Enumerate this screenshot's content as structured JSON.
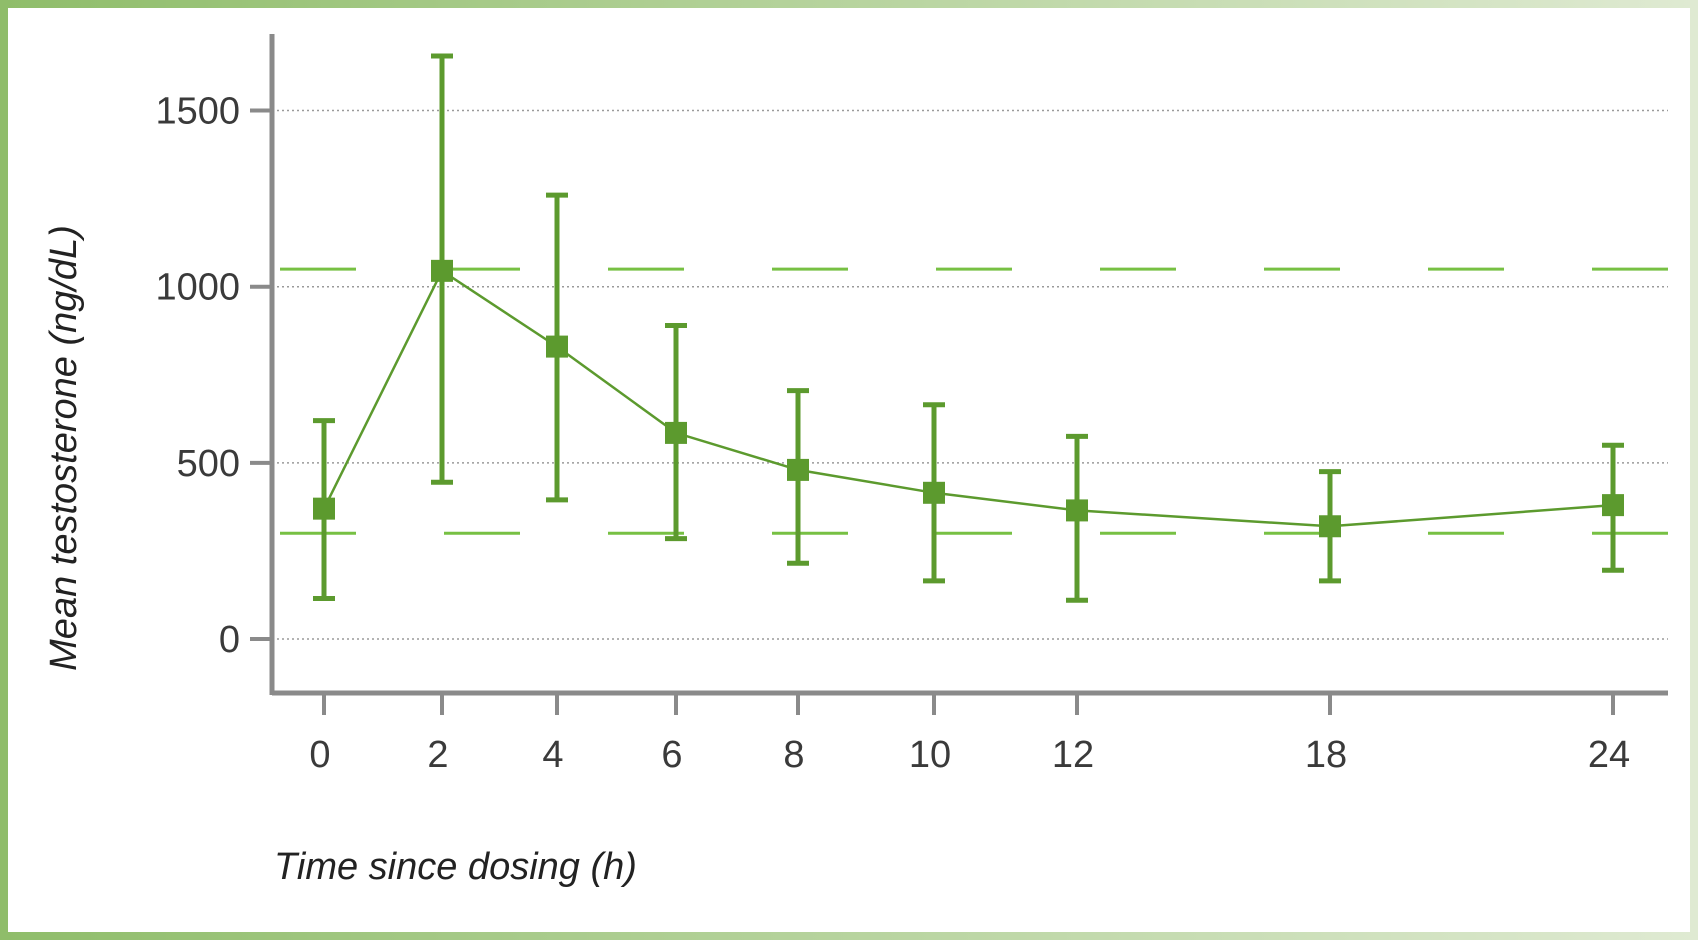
{
  "colors": {
    "frame_left": "#8fbd6a",
    "frame_right": "#dfead2",
    "series": "#5c9a2e",
    "reference_line": "#77c043",
    "axis": "#8a8a8a",
    "grid": "#9a9a9a"
  },
  "chart_data": {
    "type": "line",
    "title": "",
    "xlabel": "Time since dosing (h)",
    "ylabel": "Mean testosterone (ng/dL)",
    "x": [
      0,
      2,
      4,
      6,
      8,
      10,
      12,
      18,
      24
    ],
    "x_tick_labels": [
      "0",
      "2",
      "4",
      "6",
      "8",
      "10",
      "12",
      "18",
      "24"
    ],
    "y_ticks": [
      0,
      500,
      1000,
      1500
    ],
    "y_tick_labels": [
      "0",
      "500",
      "1000",
      "1500"
    ],
    "ylim": [
      -160,
      1720
    ],
    "grid": "horizontal dotted",
    "legend": "none",
    "series": [
      {
        "values": [
          370,
          1045,
          830,
          585,
          480,
          415,
          365,
          320,
          380
        ],
        "error_low": [
          115,
          445,
          395,
          285,
          215,
          165,
          110,
          165,
          195
        ],
        "error_high": [
          620,
          1655,
          1260,
          890,
          705,
          665,
          575,
          475,
          550
        ],
        "marker": "square"
      }
    ],
    "reference_lines": [
      {
        "y": 1050,
        "style": "dashed"
      },
      {
        "y": 300,
        "style": "dashed"
      }
    ]
  }
}
